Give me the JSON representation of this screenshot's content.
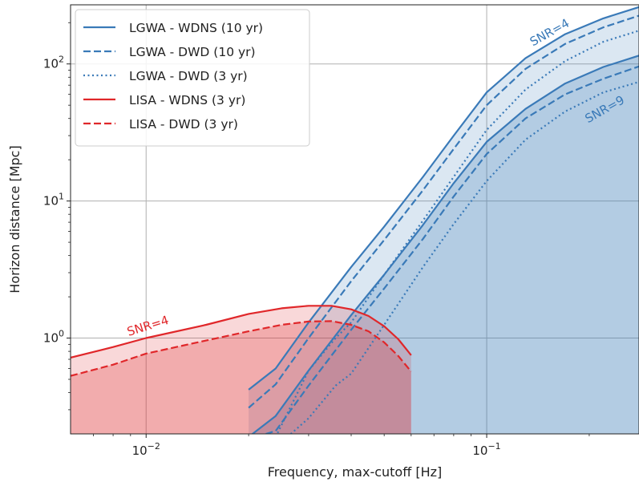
{
  "chart_data": {
    "type": "line",
    "xlabel": "Frequency, max-cutoff [Hz]",
    "ylabel": "Horizon distance [Mpc]",
    "xscale": "log",
    "yscale": "log",
    "xlim": [
      0.006,
      0.28
    ],
    "ylim": [
      0.2,
      270
    ],
    "grid": true,
    "legend_position": "top-left",
    "x_ticks": [
      {
        "value": 0.01,
        "base": "10",
        "exp": "−2"
      },
      {
        "value": 0.1,
        "base": "10",
        "exp": "−1"
      }
    ],
    "y_ticks": [
      {
        "value": 1,
        "base": "10",
        "exp": "0"
      },
      {
        "value": 10,
        "base": "10",
        "exp": "1"
      },
      {
        "value": 100,
        "base": "10",
        "exp": "2"
      }
    ],
    "colors": {
      "lgwa": "#3a7ab8",
      "lisa": "#e0272a"
    },
    "series": [
      {
        "name": "LGWA - WDNS (10 yr)",
        "detector": "lgwa",
        "dash": "solid",
        "snr4": {
          "x": [
            0.02,
            0.024,
            0.03,
            0.04,
            0.05,
            0.065,
            0.08,
            0.1,
            0.13,
            0.17,
            0.22,
            0.28
          ],
          "y": [
            0.42,
            0.6,
            1.3,
            3.3,
            6.5,
            15,
            30,
            62,
            110,
            165,
            215,
            260
          ]
        },
        "snr9": {
          "x": [
            0.02,
            0.024,
            0.03,
            0.04,
            0.05,
            0.065,
            0.08,
            0.1,
            0.13,
            0.17,
            0.22,
            0.28
          ],
          "y": [
            0.19,
            0.27,
            0.58,
            1.47,
            2.9,
            6.7,
            13.5,
            27,
            47,
            72,
            95,
            115
          ]
        }
      },
      {
        "name": "LGWA - DWD (10 yr)",
        "detector": "lgwa",
        "dash": "dashed",
        "snr4": {
          "x": [
            0.02,
            0.024,
            0.03,
            0.04,
            0.05,
            0.065,
            0.08,
            0.1,
            0.13,
            0.17,
            0.22,
            0.28
          ],
          "y": [
            0.31,
            0.46,
            1.0,
            2.6,
            5.2,
            12,
            24,
            50,
            92,
            140,
            185,
            225
          ]
        },
        "snr9": {
          "x": [
            0.021,
            0.024,
            0.03,
            0.04,
            0.05,
            0.065,
            0.08,
            0.1,
            0.13,
            0.17,
            0.22,
            0.28
          ],
          "y": [
            0.19,
            0.21,
            0.45,
            1.15,
            2.3,
            5.3,
            10.8,
            22,
            40,
            60,
            78,
            96
          ]
        }
      },
      {
        "name": "LGWA - DWD (3 yr)",
        "detector": "lgwa",
        "dash": "dotted",
        "snr4": {
          "x": [
            0.024,
            0.03,
            0.036,
            0.04,
            0.05,
            0.065,
            0.08,
            0.1,
            0.13,
            0.17,
            0.22,
            0.28
          ],
          "y": [
            0.19,
            0.58,
            1.0,
            1.3,
            2.9,
            7.2,
            15,
            33,
            65,
            105,
            145,
            175
          ]
        },
        "snr9": {
          "x": [
            0.026,
            0.03,
            0.036,
            0.04,
            0.05,
            0.065,
            0.08,
            0.1,
            0.13,
            0.17,
            0.22,
            0.28
          ],
          "y": [
            0.19,
            0.26,
            0.45,
            0.55,
            1.25,
            3.3,
            6.8,
            14,
            28,
            45,
            62,
            74
          ]
        }
      },
      {
        "name": "LISA - WDNS (3 yr)",
        "detector": "lisa",
        "dash": "solid",
        "snr4": {
          "x": [
            0.006,
            0.008,
            0.01,
            0.015,
            0.02,
            0.025,
            0.03,
            0.035,
            0.04,
            0.045,
            0.05,
            0.055,
            0.06
          ],
          "y": [
            0.72,
            0.86,
            1.0,
            1.25,
            1.5,
            1.65,
            1.72,
            1.72,
            1.62,
            1.45,
            1.22,
            0.98,
            0.75
          ]
        }
      },
      {
        "name": "LISA - DWD (3 yr)",
        "detector": "lisa",
        "dash": "dashed",
        "snr4": {
          "x": [
            0.006,
            0.008,
            0.01,
            0.015,
            0.02,
            0.025,
            0.03,
            0.035,
            0.04,
            0.045,
            0.05,
            0.055,
            0.06
          ],
          "y": [
            0.53,
            0.64,
            0.77,
            0.96,
            1.12,
            1.25,
            1.32,
            1.33,
            1.25,
            1.12,
            0.93,
            0.74,
            0.57
          ]
        }
      }
    ],
    "annotations": [
      {
        "text": "SNR=4",
        "detector": "lisa",
        "x": 0.0102,
        "y": 1.15,
        "angle": -17
      },
      {
        "text": "SNR=4",
        "detector": "lgwa",
        "x": 0.155,
        "y": 160,
        "angle": -29
      },
      {
        "text": "SNR=9",
        "detector": "lgwa",
        "x": 0.225,
        "y": 44,
        "angle": -29
      }
    ]
  }
}
